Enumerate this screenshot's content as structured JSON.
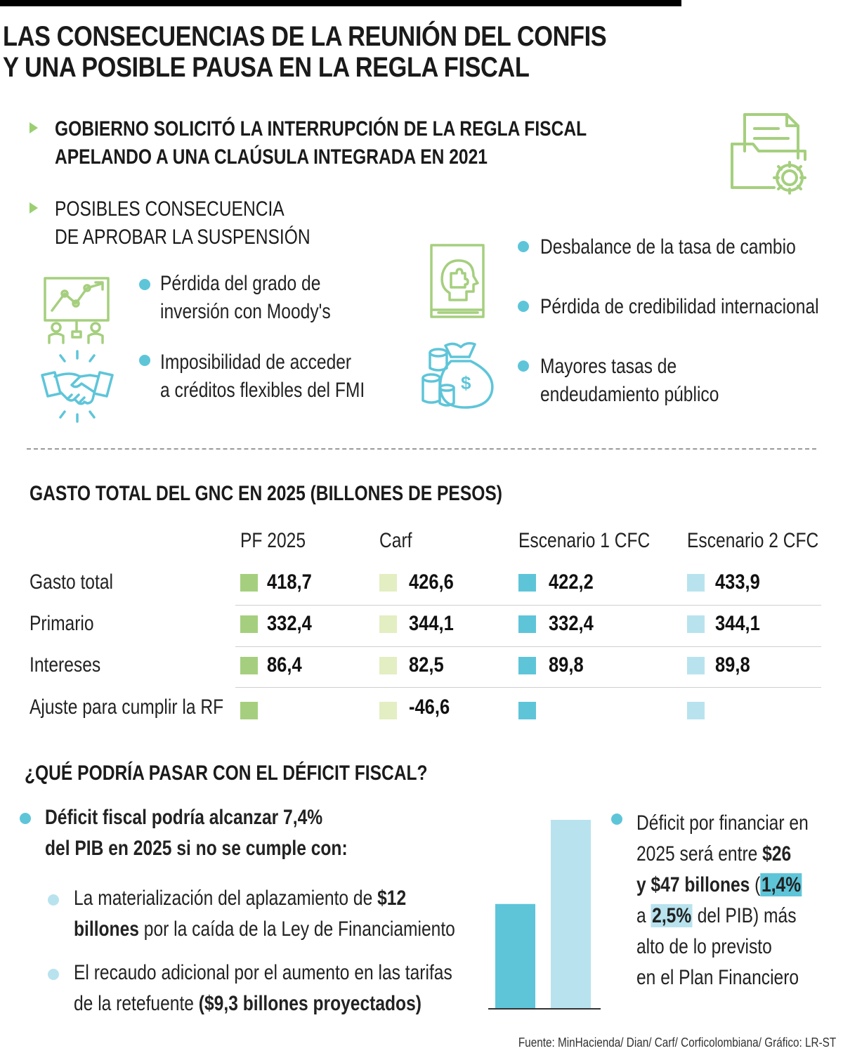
{
  "title": {
    "line1": "LAS CONSECUENCIAS DE LA REUNIÓN DEL CONFIS",
    "line2": "Y UNA POSIBLE PAUSA EN LA REGLA FISCAL"
  },
  "intro": {
    "headline_line1": "GOBIERNO SOLICITÓ LA INTERRUPCIÓN DE LA REGLA FISCAL",
    "headline_line2": "APELANDO A UNA CLAÚSULA INTEGRADA EN 2021",
    "consequences_line1": "POSIBLES CONSECUENCIA",
    "consequences_line2": "DE APROBAR LA SUSPENSIÓN"
  },
  "consequences": {
    "left": [
      {
        "line1": "Pérdida del grado de",
        "line2": "inversión con Moody's",
        "icon": "presentation-chart-icon"
      },
      {
        "line1": "Imposibilidad de acceder",
        "line2": "a créditos flexibles del FMI",
        "icon": "handshake-icon"
      }
    ],
    "right": [
      {
        "line1": "Desbalance de la tasa de cambio"
      },
      {
        "line1": "Pérdida de credibilidad internacional"
      },
      {
        "line1": "Mayores tasas de",
        "line2": "endeudamiento público"
      }
    ],
    "icons": [
      "folder-gear-icon",
      "book-head-icon",
      "money-bag-coins-icon"
    ]
  },
  "table": {
    "title": "GASTO TOTAL DEL GNC EN 2025 (BILLONES DE PESOS)",
    "columns": [
      "PF 2025",
      "Carf",
      "Escenario 1 CFC",
      "Escenario 2 CFC"
    ],
    "rows": [
      {
        "label": "Gasto total",
        "values": [
          "418,7",
          "426,6",
          "422,2",
          "433,9"
        ]
      },
      {
        "label": "Primario",
        "values": [
          "332,4",
          "344,1",
          "332,4",
          "344,1"
        ]
      },
      {
        "label": "Intereses",
        "values": [
          "86,4",
          "82,5",
          "89,8",
          "89,8"
        ]
      },
      {
        "label": "Ajuste para cumplir la RF",
        "values": [
          "",
          "-46,6",
          "",
          ""
        ]
      }
    ],
    "colors": [
      "#a5cf7e",
      "#e3eec2",
      "#5ec5d9",
      "#b8e3ee"
    ]
  },
  "deficit": {
    "title": "¿QUÉ PODRÍA PASAR CON EL DÉFICIT FISCAL?",
    "main_line1": "Déficit fiscal podría alcanzar 7,4%",
    "main_line2": "del PIB en 2025 si no se cumple con:",
    "sub1_a": "La materialización del aplazamiento de ",
    "sub1_b": "$12",
    "sub1_c": "billones",
    "sub1_d": " por la caída de la Ley de Financiamiento",
    "sub2_a": "El recaudo adicional por el aumento en las tarifas",
    "sub2_b": "de la retefuente ",
    "sub2_c": "($9,3 billones proyectados)",
    "right_l1": "Déficit por financiar en",
    "right_l2a": "2025 será entre ",
    "right_l2b": "$26",
    "right_l3a": "y $47 billones",
    "right_l3b": " (",
    "right_l3c": "1,4%",
    "right_l4a": "a ",
    "right_l4b": "2,5%",
    "right_l4c": " del PIB) más",
    "right_l5": "alto de lo previsto",
    "right_l6": "en el Plan Financiero"
  },
  "chart_data": {
    "type": "bar",
    "categories": [
      "",
      ""
    ],
    "values": [
      26,
      47
    ],
    "colors": [
      "#5ec5d9",
      "#b8e3ee"
    ]
  },
  "source": "Fuente: MinHacienda/ Dian/ Carf/ Corficolombiana/ Gráfico: LR-ST"
}
